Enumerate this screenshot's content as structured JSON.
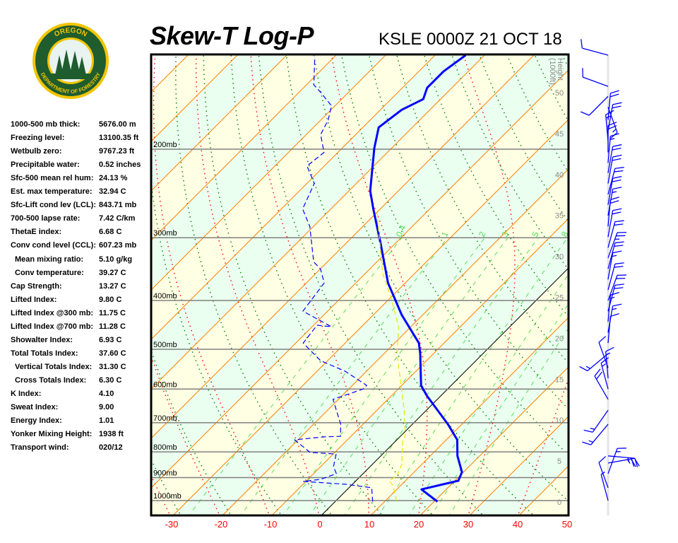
{
  "logo": {
    "top_text": "OREGON",
    "bottom_text": "DEPARTMENT OF FORESTRY",
    "ring_color": "#f2c500",
    "green": "#1f5c2e"
  },
  "header": {
    "title": "Skew-T Log-P",
    "station": "KSLE 0000Z 21 OCT 18"
  },
  "indices": [
    {
      "label": "1000-500 mb thick:",
      "value": "5676.00 m"
    },
    {
      "label": "Freezing level:",
      "value": "13100.35 ft"
    },
    {
      "label": "Wetbulb zero:",
      "value": "9767.23 ft"
    },
    {
      "label": "Precipitable water:",
      "value": "0.52 inches"
    },
    {
      "label": "Sfc-500 mean rel hum:",
      "value": "24.13 %"
    },
    {
      "label": "Est. max temperature:",
      "value": "32.94 C"
    },
    {
      "label": "Sfc-Lift cond lev (LCL):",
      "value": "843.71 mb"
    },
    {
      "label": "700-500 lapse rate:",
      "value": "7.42 C/km"
    },
    {
      "label": "ThetaE index:",
      "value": "6.68 C"
    },
    {
      "label": "Conv cond level (CCL):",
      "value": "607.23 mb"
    },
    {
      "label": "Mean mixing ratio:",
      "value": "5.10 g/kg",
      "indent": true
    },
    {
      "label": "Conv temperature:",
      "value": "39.27 C",
      "indent": true
    },
    {
      "label": "Cap Strength:",
      "value": "13.27 C"
    },
    {
      "label": "Lifted Index:",
      "value": "9.80 C"
    },
    {
      "label": "Lifted Index @300 mb:",
      "value": "11.75 C"
    },
    {
      "label": "Lifted Index @700 mb:",
      "value": "11.28 C"
    },
    {
      "label": "Showalter Index:",
      "value": "6.93 C"
    },
    {
      "label": "Total Totals Index:",
      "value": "37.60 C"
    },
    {
      "label": "Vertical Totals Index:",
      "value": "31.30 C",
      "indent": true
    },
    {
      "label": "Cross Totals Index:",
      "value": "6.30 C",
      "indent": true
    },
    {
      "label": "K Index:",
      "value": "4.10"
    },
    {
      "label": "Sweat Index:",
      "value": "9.00"
    },
    {
      "label": "Energy Index:",
      "value": "1.01"
    },
    {
      "label": "Yonker Mixing Height:",
      "value": "1938 ft"
    },
    {
      "label": "Transport wind:",
      "value": "020/12"
    }
  ],
  "chart_data": {
    "type": "line",
    "subtype": "skew-t log-p",
    "x_axis": {
      "ticks": [
        "-30",
        "-20",
        "-10",
        "0",
        "10",
        "20",
        "30",
        "40",
        "50"
      ],
      "values": [
        -30,
        -20,
        -10,
        0,
        10,
        20,
        30,
        40,
        50
      ],
      "color": "#ff0000"
    },
    "pressure_levels": [
      {
        "p": 200,
        "label": "200mb"
      },
      {
        "p": 300,
        "label": "300mb"
      },
      {
        "p": 400,
        "label": "400mb"
      },
      {
        "p": 500,
        "label": "500mb"
      },
      {
        "p": 600,
        "label": "600mb"
      },
      {
        "p": 700,
        "label": "700mb"
      },
      {
        "p": 800,
        "label": "800mb"
      },
      {
        "p": 900,
        "label": "900mb"
      },
      {
        "p": 1000,
        "label": "1000mb"
      }
    ],
    "pressure_range_mb": [
      1080,
      130
    ],
    "height_axis": {
      "title": "Height",
      "units": "(1000ft)",
      "ticks": [
        "0",
        "5",
        "10",
        "15",
        "20",
        "25",
        "30",
        "35",
        "40",
        "45",
        "50"
      ]
    },
    "mixing_ratio_labels": [
      "0.4",
      "1",
      "2",
      "3",
      "5",
      "8"
    ],
    "mixing_ratio_values": [
      0.4,
      1,
      2,
      3,
      5,
      8,
      12,
      16,
      20
    ],
    "colors": {
      "temperature": "#0000ff",
      "dewpoint": "#0000ff",
      "wetbulb": "#e8e800",
      "isotherm": "#ff8000",
      "zero_isotherm": "#000000",
      "dry_adiabat": "#008000",
      "moist_adiabat": "#ff0000",
      "mixing_ratio": "#55dd55",
      "band_a": "#ffffe4",
      "band_b": "#ebfff0"
    },
    "series": [
      {
        "id": "temperature",
        "style": "solid-thick",
        "points": [
          [
            1005,
            20.7
          ],
          [
            950,
            15.0
          ],
          [
            913,
            20.7
          ],
          [
            878,
            19.7
          ],
          [
            815,
            15.5
          ],
          [
            757,
            12.2
          ],
          [
            705,
            7.2
          ],
          [
            619,
            -2.8
          ],
          [
            590,
            -6.1
          ],
          [
            510,
            -12.7
          ],
          [
            486,
            -15.1
          ],
          [
            427,
            -24.3
          ],
          [
            369,
            -33.5
          ],
          [
            309,
            -42.8
          ],
          [
            263,
            -51.4
          ],
          [
            242,
            -55.7
          ],
          [
            199,
            -63.5
          ],
          [
            181,
            -66.8
          ],
          [
            167,
            -65.7
          ],
          [
            159,
            -63.5
          ],
          [
            151,
            -65.0
          ],
          [
            140,
            -65.0
          ],
          [
            130,
            -63.8
          ]
        ]
      },
      {
        "id": "dewpoint",
        "style": "dashed",
        "points": [
          [
            1005,
            7.6
          ],
          [
            943,
            4.6
          ],
          [
            928,
            -1.4
          ],
          [
            916,
            -10.5
          ],
          [
            907,
            -7.4
          ],
          [
            884,
            -5.4
          ],
          [
            856,
            -7.4
          ],
          [
            808,
            -9.4
          ],
          [
            802,
            -15.0
          ],
          [
            757,
            -20.7
          ],
          [
            747,
            -15.3
          ],
          [
            745,
            -12.1
          ],
          [
            705,
            -14.5
          ],
          [
            629,
            -21.1
          ],
          [
            600,
            -17.1
          ],
          [
            590,
            -17.1
          ],
          [
            553,
            -24.3
          ],
          [
            527,
            -31.4
          ],
          [
            486,
            -38.5
          ],
          [
            448,
            -39.3
          ],
          [
            451,
            -36.1
          ],
          [
            420,
            -45.0
          ],
          [
            369,
            -46.4
          ],
          [
            346,
            -50.0
          ],
          [
            335,
            -52.8
          ],
          [
            285,
            -60.7
          ],
          [
            263,
            -65.7
          ],
          [
            234,
            -68.5
          ],
          [
            216,
            -73.5
          ],
          [
            203,
            -72.8
          ],
          [
            187,
            -77.1
          ],
          [
            175,
            -78.5
          ],
          [
            164,
            -80.7
          ],
          [
            154,
            -85.7
          ],
          [
            149,
            -88.5
          ],
          [
            131,
            -94.0
          ]
        ]
      },
      {
        "id": "wetbulb",
        "style": "dashed",
        "points": [
          [
            1000,
            12.2
          ],
          [
            934,
            8.5
          ],
          [
            913,
            6.7
          ],
          [
            893,
            7.3
          ],
          [
            848,
            6.0
          ],
          [
            759,
            1.3
          ],
          [
            745,
            1.0
          ],
          [
            661,
            -4.5
          ],
          [
            580,
            -11.0
          ],
          [
            510,
            -17.4
          ],
          [
            452,
            -22.4
          ],
          [
            394,
            -30.0
          ],
          [
            354,
            -36.4
          ],
          [
            267,
            -50.0
          ]
        ]
      }
    ],
    "winds": [
      {
        "p": 130,
        "dir": 285,
        "kt": 10
      },
      {
        "p": 150,
        "dir": 290,
        "kt": 10
      },
      {
        "p": 157,
        "dir": 225,
        "kt": 10
      },
      {
        "p": 165,
        "dir": 160,
        "kt": 15
      },
      {
        "p": 175,
        "dir": 5,
        "kt": 20
      },
      {
        "p": 184,
        "dir": 10,
        "kt": 20
      },
      {
        "p": 193,
        "dir": 355,
        "kt": 15
      },
      {
        "p": 203,
        "dir": 0,
        "kt": 20
      },
      {
        "p": 213,
        "dir": 5,
        "kt": 15
      },
      {
        "p": 223,
        "dir": 10,
        "kt": 20
      },
      {
        "p": 234,
        "dir": 10,
        "kt": 20
      },
      {
        "p": 246,
        "dir": 15,
        "kt": 20
      },
      {
        "p": 258,
        "dir": 10,
        "kt": 20
      },
      {
        "p": 271,
        "dir": 10,
        "kt": 15
      },
      {
        "p": 285,
        "dir": 5,
        "kt": 20
      },
      {
        "p": 299,
        "dir": 10,
        "kt": 20
      },
      {
        "p": 314,
        "dir": 15,
        "kt": 20
      },
      {
        "p": 329,
        "dir": 20,
        "kt": 25
      },
      {
        "p": 346,
        "dir": 15,
        "kt": 20
      },
      {
        "p": 363,
        "dir": 10,
        "kt": 15
      },
      {
        "p": 381,
        "dir": 15,
        "kt": 20
      },
      {
        "p": 400,
        "dir": 20,
        "kt": 20
      },
      {
        "p": 420,
        "dir": 15,
        "kt": 20
      },
      {
        "p": 441,
        "dir": 5,
        "kt": 15
      },
      {
        "p": 463,
        "dir": 10,
        "kt": 15
      },
      {
        "p": 486,
        "dir": 5,
        "kt": 10
      },
      {
        "p": 510,
        "dir": 230,
        "kt": 15
      },
      {
        "p": 544,
        "dir": 340,
        "kt": 10
      },
      {
        "p": 571,
        "dir": 355,
        "kt": 15
      },
      {
        "p": 600,
        "dir": 345,
        "kt": 15
      },
      {
        "p": 629,
        "dir": 330,
        "kt": 20
      },
      {
        "p": 661,
        "dir": 215,
        "kt": 15
      },
      {
        "p": 705,
        "dir": 220,
        "kt": 15
      },
      {
        "p": 815,
        "dir": 95,
        "kt": 25
      },
      {
        "p": 842,
        "dir": 80,
        "kt": 25
      },
      {
        "p": 884,
        "dir": 20,
        "kt": 15
      },
      {
        "p": 943,
        "dir": 340,
        "kt": 10
      },
      {
        "p": 1000,
        "dir": 345,
        "kt": 5
      }
    ]
  }
}
